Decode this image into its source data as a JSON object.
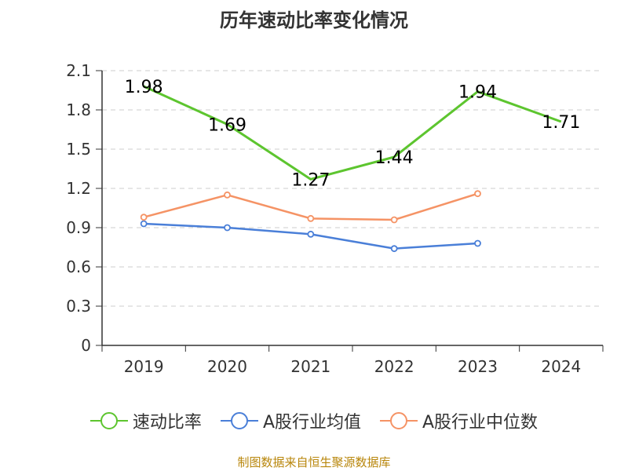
{
  "chart_data": {
    "type": "line",
    "title": "历年速动比率变化情况",
    "categories": [
      "2019",
      "2020",
      "2021",
      "2022",
      "2023",
      "2024"
    ],
    "ylim": [
      0,
      2.1
    ],
    "yticks": [
      "0",
      "0.3",
      "0.6",
      "0.9",
      "1.2",
      "1.5",
      "1.8",
      "2.1"
    ],
    "grid": true,
    "legend_position": "bottom",
    "series": [
      {
        "name": "速动比率",
        "color": "#5dc52f",
        "values": [
          1.98,
          1.69,
          1.27,
          1.44,
          1.94,
          1.71
        ],
        "labels": [
          "1.98",
          "1.69",
          "1.27",
          "1.44",
          "1.94",
          "1.71"
        ]
      },
      {
        "name": "A股行业均值",
        "color": "#4a7fd8",
        "values": [
          0.93,
          0.9,
          0.85,
          0.74,
          0.78,
          null
        ]
      },
      {
        "name": "A股行业中位数",
        "color": "#f59365",
        "values": [
          0.98,
          1.15,
          0.97,
          0.96,
          1.16,
          null
        ]
      }
    ],
    "source": "制图数据来自恒生聚源数据库"
  }
}
